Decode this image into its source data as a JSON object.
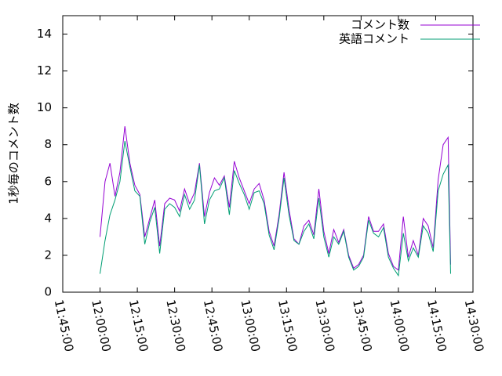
{
  "chart_data": {
    "type": "line",
    "ylabel": "1秒毎のコメント数",
    "x": [
      "12:00:00",
      "12:02:00",
      "12:04:00",
      "12:06:00",
      "12:08:00",
      "12:10:00",
      "12:12:00",
      "12:14:00",
      "12:16:00",
      "12:18:00",
      "12:20:00",
      "12:22:00",
      "12:24:00",
      "12:26:00",
      "12:28:00",
      "12:30:00",
      "12:32:00",
      "12:34:00",
      "12:36:00",
      "12:38:00",
      "12:40:00",
      "12:42:00",
      "12:44:00",
      "12:46:00",
      "12:48:00",
      "12:50:00",
      "12:52:00",
      "12:54:00",
      "12:56:00",
      "12:58:00",
      "13:00:00",
      "13:02:00",
      "13:04:00",
      "13:06:00",
      "13:08:00",
      "13:10:00",
      "13:12:00",
      "13:14:00",
      "13:16:00",
      "13:18:00",
      "13:20:00",
      "13:22:00",
      "13:24:00",
      "13:26:00",
      "13:28:00",
      "13:30:00",
      "13:32:00",
      "13:34:00",
      "13:36:00",
      "13:38:00",
      "13:40:00",
      "13:42:00",
      "13:44:00",
      "13:46:00",
      "13:48:00",
      "13:50:00",
      "13:52:00",
      "13:54:00",
      "13:56:00",
      "13:58:00",
      "14:00:00",
      "14:02:00",
      "14:04:00",
      "14:06:00",
      "14:08:00",
      "14:10:00",
      "14:12:00",
      "14:14:00",
      "14:16:00",
      "14:18:00",
      "14:20:00",
      "14:21:00"
    ],
    "series": [
      {
        "name": "コメント数",
        "color": "#9400d3",
        "values": [
          3.0,
          6.0,
          7.0,
          5.2,
          6.5,
          9.0,
          7.0,
          5.8,
          5.3,
          3.0,
          4.0,
          5.0,
          2.5,
          4.8,
          5.1,
          5.0,
          4.4,
          5.6,
          4.8,
          5.4,
          7.0,
          4.1,
          5.4,
          6.2,
          5.8,
          6.3,
          4.6,
          7.1,
          6.2,
          5.5,
          4.8,
          5.6,
          5.9,
          5.0,
          3.3,
          2.5,
          4.2,
          6.5,
          4.5,
          2.9,
          2.6,
          3.6,
          3.9,
          3.1,
          5.6,
          3.3,
          2.1,
          3.4,
          2.7,
          3.4,
          2.0,
          1.3,
          1.5,
          2.0,
          4.1,
          3.3,
          3.3,
          3.7,
          2.1,
          1.4,
          1.2,
          4.1,
          1.9,
          2.8,
          2.0,
          4.0,
          3.6,
          2.4,
          6.1,
          8.0,
          8.4,
          1.5
        ]
      },
      {
        "name": "英語コメント",
        "color": "#009e73",
        "values": [
          1.0,
          2.8,
          4.2,
          5.0,
          6.0,
          8.2,
          6.8,
          5.5,
          5.2,
          2.6,
          3.8,
          4.6,
          2.1,
          4.5,
          4.8,
          4.6,
          4.1,
          5.3,
          4.5,
          5.0,
          6.9,
          3.7,
          5.0,
          5.5,
          5.6,
          6.2,
          4.2,
          6.6,
          5.9,
          5.3,
          4.5,
          5.4,
          5.5,
          4.8,
          3.1,
          2.3,
          4.0,
          6.2,
          4.2,
          2.8,
          2.6,
          3.3,
          3.7,
          2.9,
          5.1,
          3.0,
          1.9,
          3.0,
          2.6,
          3.3,
          1.9,
          1.2,
          1.4,
          1.9,
          3.9,
          3.2,
          3.0,
          3.5,
          1.9,
          1.3,
          0.9,
          3.2,
          1.7,
          2.4,
          1.9,
          3.6,
          3.2,
          2.2,
          5.5,
          6.4,
          6.9,
          1.0
        ]
      }
    ],
    "xlim": [
      "11:45:00",
      "14:30:00"
    ],
    "xticks": [
      "11:45:00",
      "12:00:00",
      "12:15:00",
      "12:30:00",
      "12:45:00",
      "13:00:00",
      "13:15:00",
      "13:30:00",
      "13:45:00",
      "14:00:00",
      "14:15:00",
      "14:30:00"
    ],
    "ylim": [
      0,
      15
    ],
    "yticks": [
      0,
      2,
      4,
      6,
      8,
      10,
      12,
      14
    ],
    "legend": "top-right"
  }
}
